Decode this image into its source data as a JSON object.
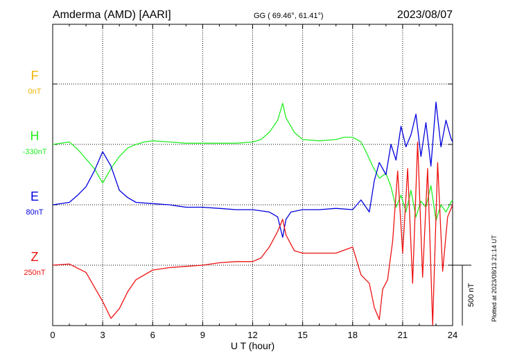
{
  "header": {
    "station": "Amderma (AMD)  [AARI]",
    "coords": "GG ( 69.46°,  61.41°)",
    "date": "2023/08/07"
  },
  "plotted_note": "Plotted at 2023/08/13 21:14 UT",
  "colors": {
    "F": "#f0b400",
    "H": "#22ee22",
    "E": "#0000dd",
    "Z": "#ee1111"
  },
  "chart_data": {
    "type": "line",
    "title": "Amderma (AMD)  [AARI]",
    "xlabel": "U T (hour)",
    "ylabel": "",
    "xlim": [
      0,
      24
    ],
    "x_ticks": [
      0,
      3,
      6,
      9,
      12,
      15,
      18,
      21,
      24
    ],
    "x_tick_labels": [
      "0",
      "3",
      "6",
      "9",
      "12",
      "15",
      "18",
      "21",
      "24"
    ],
    "scale_bar": {
      "label": "500 nT",
      "value_nT": 500
    },
    "grid": true,
    "series": [
      {
        "name": "F",
        "baseline_label": "0nT",
        "color": "#f0b400",
        "x": [],
        "values": []
      },
      {
        "name": "H",
        "baseline_label": "-330nT",
        "color": "#22ee22",
        "x": [
          0,
          0.5,
          1.0,
          1.5,
          2.0,
          2.5,
          3.0,
          3.5,
          4.0,
          4.5,
          5.0,
          5.5,
          6.0,
          7,
          8,
          9,
          10,
          11,
          12,
          12.5,
          13.0,
          13.5,
          13.8,
          14.0,
          14.5,
          15,
          16,
          17,
          17.5,
          18.0,
          18.5,
          18.8,
          19.2,
          19.6,
          20.0,
          20.3,
          20.6,
          20.9,
          21.2,
          21.5,
          21.8,
          22.1,
          22.4,
          22.7,
          23.0,
          23.3,
          23.6,
          23.9,
          24.0
        ],
        "values": [
          0,
          10,
          20,
          -40,
          -120,
          -200,
          -320,
          -200,
          -100,
          -30,
          0,
          20,
          30,
          20,
          10,
          10,
          10,
          10,
          20,
          40,
          100,
          200,
          340,
          220,
          100,
          40,
          30,
          40,
          60,
          60,
          20,
          -60,
          -180,
          -280,
          -240,
          -350,
          -520,
          -420,
          -560,
          -380,
          -600,
          -470,
          -520,
          -340,
          -630,
          -500,
          -560,
          -480,
          -460
        ]
      },
      {
        "name": "E",
        "baseline_label": "80nT",
        "color": "#0000dd",
        "x": [
          0,
          1.0,
          1.5,
          2.0,
          2.5,
          3.0,
          3.5,
          4.0,
          4.5,
          5,
          6,
          7,
          8,
          9,
          10,
          11,
          12,
          13,
          13.5,
          13.8,
          14.0,
          14.3,
          15,
          16,
          17,
          18.0,
          18.5,
          19.0,
          19.3,
          19.6,
          20.0,
          20.3,
          20.6,
          20.9,
          21.2,
          21.5,
          21.8,
          22.1,
          22.4,
          22.7,
          23.0,
          23.3,
          23.6,
          23.9,
          24.0
        ],
        "values": [
          0,
          20,
          80,
          150,
          280,
          440,
          320,
          120,
          60,
          20,
          10,
          0,
          -20,
          -20,
          -30,
          -40,
          -40,
          -60,
          -100,
          -270,
          -120,
          -60,
          -40,
          -40,
          -30,
          -40,
          40,
          -60,
          200,
          350,
          250,
          500,
          370,
          650,
          480,
          580,
          750,
          400,
          680,
          320,
          850,
          480,
          700,
          550,
          520
        ]
      },
      {
        "name": "Z",
        "baseline_label": "250nT",
        "color": "#ee1111",
        "x": [
          0,
          1,
          2.0,
          2.5,
          3.0,
          3.5,
          4.0,
          4.5,
          5.0,
          6,
          7,
          8,
          9,
          10,
          11,
          12,
          12.5,
          13.0,
          13.5,
          13.8,
          14.0,
          14.5,
          15,
          16,
          17,
          18.0,
          18.5,
          19.0,
          19.3,
          19.6,
          19.8,
          20.1,
          20.4,
          20.7,
          21.0,
          21.3,
          21.6,
          21.9,
          22.2,
          22.5,
          22.8,
          23.1,
          23.4,
          23.7,
          24.0
        ],
        "values": [
          0,
          10,
          -60,
          -180,
          -300,
          -440,
          -360,
          -220,
          -120,
          -40,
          -20,
          -10,
          0,
          20,
          30,
          30,
          60,
          150,
          280,
          380,
          250,
          120,
          100,
          100,
          100,
          150,
          -80,
          -150,
          -350,
          -450,
          -200,
          -120,
          200,
          780,
          100,
          800,
          -150,
          1020,
          -100,
          800,
          -550,
          850,
          -50,
          400,
          500
        ]
      }
    ]
  }
}
